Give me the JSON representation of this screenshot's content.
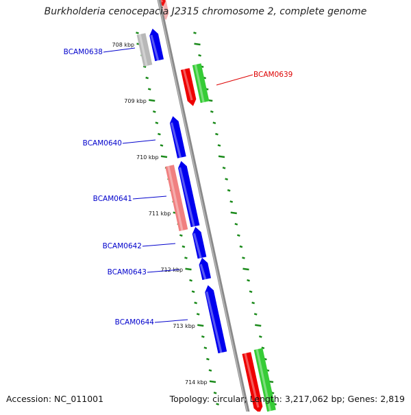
{
  "title": "Burkholderia cenocepacia J2315 chromosome 2, complete genome",
  "accession": "Accession: NC_011001",
  "summary": "Topology: circular; Length: 3,217,062 bp; Genes: 2,819",
  "colors": {
    "backbone": "#8a8a8a",
    "ticks": "#1a8a1a",
    "forward_gene": "#0000ee",
    "reverse_gene": "#ee0000",
    "forward_label": "#0000cc",
    "reverse_label": "#dd0000"
  },
  "kbp_labels": [
    "708 kbp",
    "709 kbp",
    "710 kbp",
    "711 kbp",
    "712 kbp",
    "713 kbp",
    "714 kbp"
  ],
  "genes": [
    {
      "name": "BCAM0638",
      "strand": "+"
    },
    {
      "name": "BCAM0639",
      "strand": "-"
    },
    {
      "name": "BCAM0640",
      "strand": "+"
    },
    {
      "name": "BCAM0641",
      "strand": "+"
    },
    {
      "name": "BCAM0642",
      "strand": "+"
    },
    {
      "name": "BCAM0643",
      "strand": "+"
    },
    {
      "name": "BCAM0644",
      "strand": "+"
    }
  ]
}
